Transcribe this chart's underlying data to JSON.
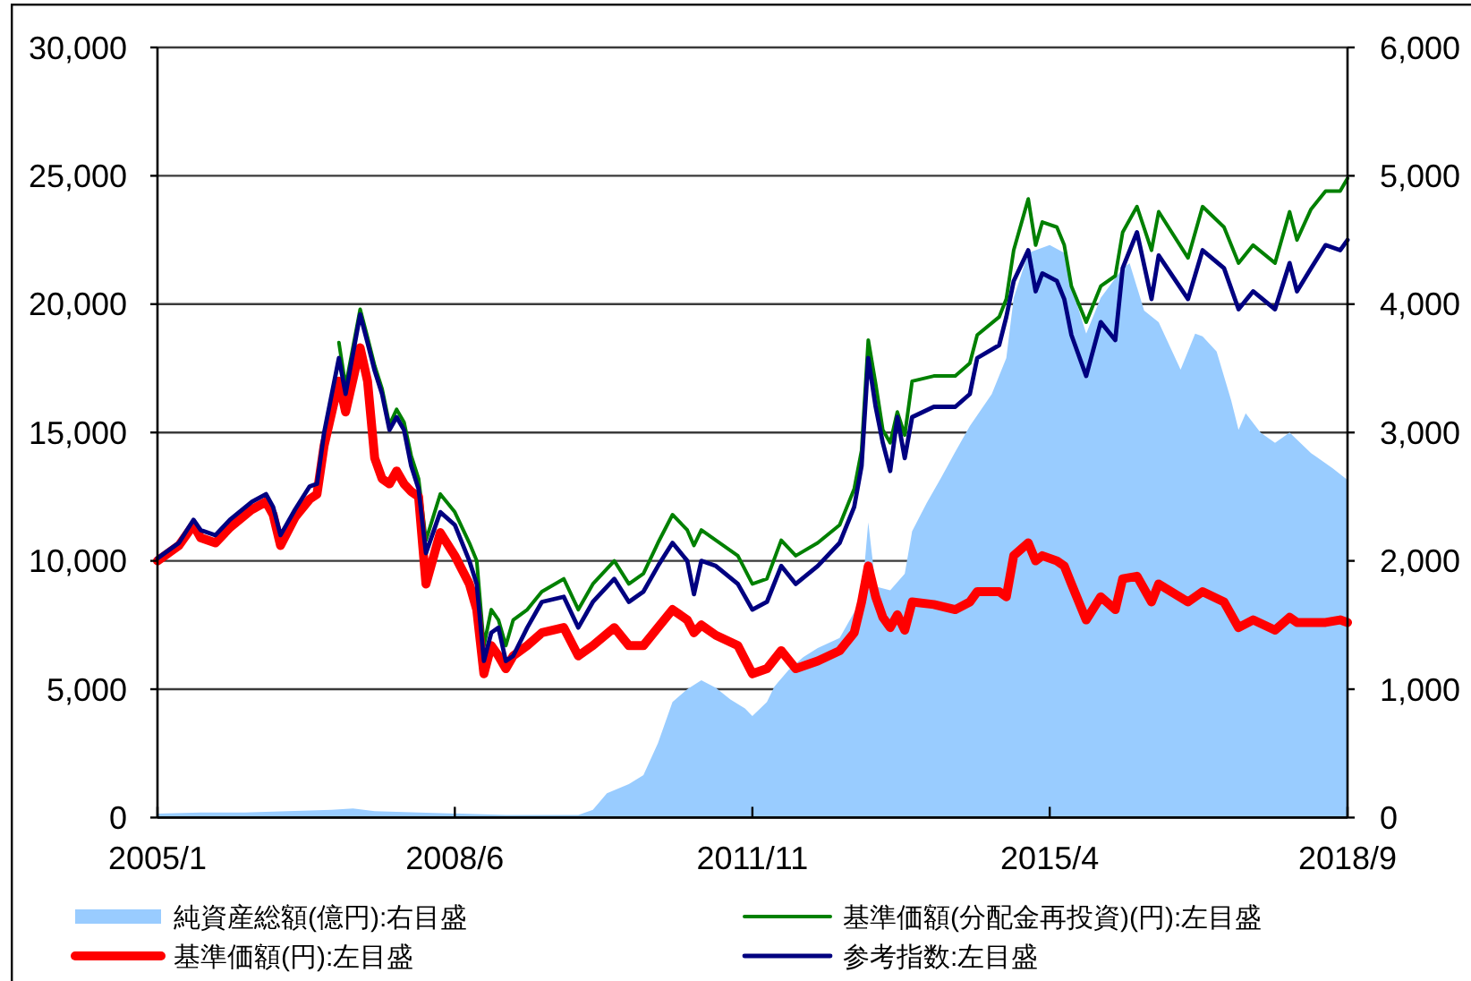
{
  "chart_data": {
    "type": "line",
    "xlim": [
      "2005-01",
      "2018-09"
    ],
    "xticks": [
      {
        "value": "2005-01",
        "label": "2005/1"
      },
      {
        "value": "2008-06",
        "label": "2008/6"
      },
      {
        "value": "2011-11",
        "label": "2011/11"
      },
      {
        "value": "2015-04",
        "label": "2015/4"
      },
      {
        "value": "2018-09",
        "label": "2018/9"
      }
    ],
    "ylim": [
      0,
      30000
    ],
    "yticks": [
      0,
      {
        "value": 5000,
        "label": "5,000"
      },
      {
        "value": 10000,
        "label": "10,000"
      },
      {
        "value": 15000,
        "label": "15,000"
      },
      {
        "value": 20000,
        "label": "20,000"
      },
      {
        "value": 25000,
        "label": "25,000"
      },
      {
        "value": 30000,
        "label": "30,000"
      }
    ],
    "y2lim": [
      0,
      6000
    ],
    "y2ticks": [
      0,
      {
        "value": 1000,
        "label": "1,000"
      },
      {
        "value": 2000,
        "label": "2,000"
      },
      {
        "value": 3000,
        "label": "3,000"
      },
      {
        "value": 4000,
        "label": "4,000"
      },
      {
        "value": 5000,
        "label": "5,000"
      },
      {
        "value": 6000,
        "label": "6,000"
      }
    ],
    "grid": "y",
    "legend": "bottom",
    "x": [
      "2005-01",
      "2005-04",
      "2005-06",
      "2005-07",
      "2005-09",
      "2005-11",
      "2006-02",
      "2006-04",
      "2006-05",
      "2006-06",
      "2006-08",
      "2006-10",
      "2006-11",
      "2006-12",
      "2007-02",
      "2007-03",
      "2007-05",
      "2007-06",
      "2007-07",
      "2007-08",
      "2007-09",
      "2007-10",
      "2007-11",
      "2007-12",
      "2008-01",
      "2008-02",
      "2008-04",
      "2008-06",
      "2008-08",
      "2008-09",
      "2008-10",
      "2008-11",
      "2008-12",
      "2009-01",
      "2009-02",
      "2009-04",
      "2009-06",
      "2009-09",
      "2009-11",
      "2010-01",
      "2010-04",
      "2010-06",
      "2010-08",
      "2010-10",
      "2010-12",
      "2011-02",
      "2011-03",
      "2011-04",
      "2011-06",
      "2011-09",
      "2011-11",
      "2012-01",
      "2012-03",
      "2012-05",
      "2012-08",
      "2012-11",
      "2013-01",
      "2013-02",
      "2013-03",
      "2013-04",
      "2013-05",
      "2013-06",
      "2013-07",
      "2013-08",
      "2013-09",
      "2013-12",
      "2014-03",
      "2014-05",
      "2014-06",
      "2014-09",
      "2014-10",
      "2014-11",
      "2015-01",
      "2015-02",
      "2015-03",
      "2015-05",
      "2015-06",
      "2015-07",
      "2015-09",
      "2015-11",
      "2016-01",
      "2016-02",
      "2016-04",
      "2016-06",
      "2016-07",
      "2016-11",
      "2017-01",
      "2017-04",
      "2017-06",
      "2017-08",
      "2017-11",
      "2018-01",
      "2018-02",
      "2018-04",
      "2018-06",
      "2018-08",
      "2018-09"
    ],
    "series": [
      {
        "name": "純資産総額(億円):右目盛",
        "type": "area",
        "axis": "y2",
        "color": "#99ccff",
        "x": [
          "2005-01",
          "2005-07",
          "2006-01",
          "2006-07",
          "2007-01",
          "2007-04",
          "2007-07",
          "2008-01",
          "2008-07",
          "2009-01",
          "2009-07",
          "2009-11",
          "2010-01",
          "2010-03",
          "2010-06",
          "2010-08",
          "2010-10",
          "2010-12",
          "2011-02",
          "2011-04",
          "2011-06",
          "2011-08",
          "2011-10",
          "2011-11",
          "2012-01",
          "2012-02",
          "2012-04",
          "2012-06",
          "2012-08",
          "2012-11",
          "2013-01",
          "2013-02",
          "2013-03",
          "2013-04",
          "2013-06",
          "2013-08",
          "2013-09",
          "2013-11",
          "2014-01",
          "2014-03",
          "2014-05",
          "2014-08",
          "2014-10",
          "2014-11",
          "2015-01",
          "2015-04",
          "2015-06",
          "2015-07",
          "2015-09",
          "2015-11",
          "2016-02",
          "2016-03",
          "2016-05",
          "2016-07",
          "2016-10",
          "2016-12",
          "2017-01",
          "2017-03",
          "2017-05",
          "2017-06",
          "2017-07",
          "2017-09",
          "2017-11",
          "2018-01",
          "2018-04",
          "2018-07",
          "2018-09"
        ],
        "values": [
          30,
          40,
          40,
          50,
          60,
          70,
          50,
          40,
          30,
          20,
          20,
          20,
          60,
          190,
          260,
          330,
          580,
          900,
          1000,
          1070,
          1010,
          920,
          850,
          790,
          900,
          1020,
          1150,
          1250,
          1320,
          1400,
          1600,
          1700,
          2300,
          1800,
          1770,
          1900,
          2230,
          2450,
          2650,
          2850,
          3050,
          3300,
          3580,
          4050,
          4400,
          4460,
          4400,
          4140,
          3770,
          4050,
          4280,
          4320,
          3950,
          3860,
          3490,
          3770,
          3750,
          3630,
          3250,
          3020,
          3150,
          3000,
          2920,
          3000,
          2840,
          2720,
          2630
        ]
      },
      {
        "name": "基準価額(分配金再投資)(円):左目盛",
        "color": "#008000",
        "values": [
          null,
          null,
          null,
          null,
          null,
          null,
          null,
          null,
          null,
          null,
          null,
          null,
          null,
          null,
          18500,
          16800,
          19800,
          18700,
          17600,
          16700,
          15300,
          15900,
          15400,
          14100,
          13200,
          10800,
          12600,
          11900,
          10700,
          10000,
          6700,
          8100,
          7700,
          6700,
          7700,
          8100,
          8800,
          9300,
          8100,
          9100,
          10000,
          9100,
          9500,
          10700,
          11800,
          11200,
          10600,
          11200,
          10800,
          10200,
          9100,
          9300,
          10800,
          10200,
          10700,
          11400,
          12800,
          14300,
          18600,
          16900,
          15100,
          14600,
          15800,
          14900,
          17000,
          17200,
          17200,
          17700,
          18800,
          19500,
          20200,
          22100,
          24100,
          22300,
          23200,
          23000,
          22300,
          20700,
          19300,
          20700,
          21100,
          22800,
          23800,
          22100,
          23600,
          21800,
          23800,
          23000,
          21600,
          22300,
          21600,
          23600,
          22500,
          23700,
          24400,
          24400,
          24900
        ]
      },
      {
        "name": "基準価額(円):左目盛",
        "color": "#ff0000",
        "values": [
          10000,
          10600,
          11400,
          10900,
          10700,
          11300,
          12000,
          12300,
          11800,
          10600,
          11700,
          12400,
          12600,
          14500,
          17000,
          15800,
          18300,
          17000,
          14000,
          13200,
          13000,
          13500,
          13000,
          12700,
          12500,
          9100,
          11100,
          10200,
          9100,
          8100,
          5600,
          6700,
          6300,
          5800,
          6300,
          6700,
          7200,
          7400,
          6300,
          6700,
          7400,
          6700,
          6700,
          7400,
          8100,
          7700,
          7200,
          7500,
          7100,
          6700,
          5600,
          5800,
          6500,
          5800,
          6100,
          6500,
          7200,
          8400,
          9800,
          8600,
          7800,
          7400,
          7900,
          7300,
          8400,
          8300,
          8100,
          8400,
          8800,
          8800,
          8600,
          10200,
          10700,
          10000,
          10200,
          10000,
          9800,
          9100,
          7700,
          8600,
          8100,
          9300,
          9400,
          8400,
          9100,
          8400,
          8800,
          8400,
          7400,
          7700,
          7300,
          7800,
          7600,
          7600,
          7600,
          7700,
          7600
        ]
      },
      {
        "name": "参考指数:左目盛",
        "color": "#000080",
        "values": [
          10100,
          10700,
          11600,
          11200,
          11000,
          11600,
          12300,
          12600,
          12100,
          11000,
          12000,
          12900,
          13000,
          15000,
          17900,
          16500,
          19600,
          18500,
          17400,
          16500,
          15100,
          15600,
          15100,
          13700,
          12800,
          10300,
          11900,
          11400,
          10000,
          9100,
          6100,
          7200,
          7400,
          6100,
          6300,
          7400,
          8400,
          8600,
          7400,
          8400,
          9300,
          8400,
          8800,
          9800,
          10700,
          10000,
          8700,
          10000,
          9800,
          9100,
          8100,
          8400,
          9800,
          9100,
          9800,
          10700,
          12100,
          13700,
          17900,
          16000,
          14600,
          13500,
          15600,
          14000,
          15600,
          16000,
          16000,
          16500,
          17900,
          18400,
          19500,
          20900,
          22100,
          20500,
          21200,
          20900,
          20200,
          18800,
          17200,
          19300,
          18600,
          21400,
          22800,
          20200,
          21900,
          20200,
          22100,
          21400,
          19800,
          20500,
          19800,
          21600,
          20500,
          21400,
          22300,
          22100,
          22500
        ]
      }
    ]
  }
}
